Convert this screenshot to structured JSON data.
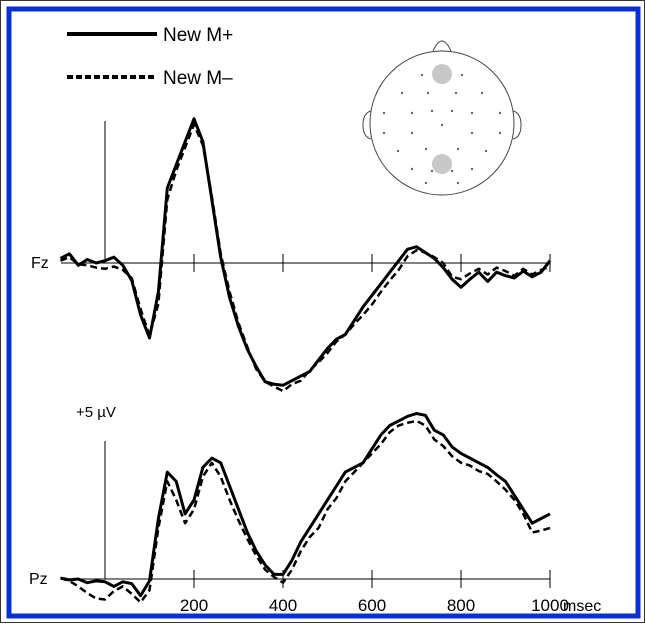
{
  "chart_data": {
    "type": "line",
    "colors": {
      "frame_border": "#0a2fd6",
      "trace": "#000000",
      "electrode": "#c8c8c8"
    },
    "legend": {
      "position": "top-left",
      "entries": [
        {
          "label": "New M+",
          "style": "solid"
        },
        {
          "label": "New M–",
          "style": "dashed"
        }
      ]
    },
    "x_axis": {
      "ticks": [
        200,
        400,
        600,
        800,
        1000
      ],
      "unit": "msec",
      "range": [
        -100,
        1000
      ]
    },
    "y_scale": {
      "label": "+5 µV",
      "value_uV": 5
    },
    "series_names": [
      "New M+",
      "New M–"
    ],
    "channels": [
      {
        "label": "Fz",
        "y_range": [
          -11,
          13
        ],
        "x": [
          -100,
          -80,
          -60,
          -40,
          -20,
          0,
          20,
          40,
          60,
          80,
          100,
          120,
          140,
          160,
          180,
          200,
          220,
          240,
          260,
          280,
          300,
          320,
          340,
          360,
          380,
          400,
          420,
          440,
          460,
          480,
          500,
          520,
          540,
          560,
          580,
          600,
          620,
          640,
          660,
          680,
          700,
          720,
          740,
          760,
          780,
          800,
          820,
          840,
          860,
          880,
          900,
          920,
          940,
          960,
          980,
          1000
        ],
        "series": [
          {
            "name": "New M+",
            "values": [
              0.4,
              0.8,
              -0.2,
              0.3,
              0,
              0.2,
              0.5,
              -0.2,
              -1.5,
              -4.5,
              -6.5,
              -2.5,
              6.5,
              8.5,
              10.5,
              12.5,
              10.5,
              5.5,
              0.5,
              -3,
              -5.5,
              -7.5,
              -9,
              -10.3,
              -10.5,
              -10.6,
              -10.2,
              -9.8,
              -9.4,
              -8.4,
              -7.4,
              -6.6,
              -6.2,
              -5,
              -3.8,
              -2.8,
              -1.8,
              -0.8,
              0.2,
              1.2,
              1.4,
              0.9,
              0.4,
              -0.4,
              -1.4,
              -2.1,
              -1.4,
              -0.8,
              -1.6,
              -0.8,
              -1.1,
              -1.3,
              -0.7,
              -1.2,
              -0.8,
              0.2
            ]
          },
          {
            "name": "New M–",
            "values": [
              0.2,
              0.5,
              -0.1,
              -0.2,
              -0.4,
              -0.5,
              -0.3,
              -0.6,
              -1.3,
              -4,
              -6.3,
              -3.5,
              5.5,
              8,
              10,
              12,
              10.2,
              5.8,
              0.8,
              -2.5,
              -5.2,
              -7.3,
              -9.2,
              -10.3,
              -10.7,
              -11.1,
              -10.5,
              -10.2,
              -9.3,
              -8.6,
              -7.8,
              -6.8,
              -6.2,
              -5.3,
              -4.5,
              -3.6,
              -2.5,
              -1.5,
              -0.6,
              0.6,
              1.1,
              0.9,
              0.5,
              0,
              -1.2,
              -1.4,
              -0.9,
              -0.5,
              -1,
              -0.4,
              -0.7,
              -1.1,
              -0.5,
              -1,
              -0.6,
              -0.3
            ]
          }
        ]
      },
      {
        "label": "Pz",
        "y_range": [
          -2.5,
          20
        ],
        "x": [
          -100,
          -80,
          -60,
          -40,
          -20,
          0,
          20,
          40,
          60,
          80,
          100,
          120,
          140,
          160,
          180,
          200,
          220,
          240,
          260,
          280,
          300,
          320,
          340,
          360,
          380,
          400,
          420,
          440,
          460,
          480,
          500,
          520,
          540,
          560,
          580,
          600,
          620,
          640,
          660,
          680,
          700,
          720,
          740,
          760,
          780,
          800,
          820,
          840,
          860,
          880,
          900,
          920,
          940,
          960,
          980,
          1000
        ],
        "series": [
          {
            "name": "New M+",
            "values": [
              0.1,
              -0.1,
              0,
              -0.4,
              -0.2,
              -0.3,
              -0.8,
              -0.3,
              -0.5,
              -1.8,
              -0.2,
              6.5,
              11.5,
              10.5,
              7,
              8.5,
              12,
              13,
              12.5,
              10,
              7.5,
              5,
              3,
              1.5,
              0.5,
              0.5,
              2,
              4,
              5.5,
              7,
              8.5,
              10,
              11.5,
              12,
              12.5,
              14,
              15.5,
              16.5,
              17,
              17.5,
              17.8,
              17.6,
              16,
              15.5,
              14.2,
              13.5,
              13,
              12.5,
              12,
              11.2,
              10.5,
              9,
              7.5,
              6,
              6.5,
              7
            ]
          },
          {
            "name": "New M–",
            "values": [
              0.1,
              -0.2,
              -0.8,
              -1.5,
              -2.1,
              -2.2,
              -1.3,
              -0.8,
              -1.6,
              -2.5,
              -1.2,
              5.5,
              10.5,
              8.5,
              6,
              7.5,
              11,
              12.5,
              11,
              8.5,
              6.3,
              4.3,
              2.5,
              1,
              0.2,
              -0.4,
              1,
              3,
              4.5,
              5.5,
              7.5,
              8.7,
              10.5,
              11.5,
              12.5,
              13.5,
              14.5,
              15.8,
              16.5,
              16.8,
              17,
              16.5,
              15,
              14.3,
              13.2,
              12.5,
              12.2,
              11.6,
              11.3,
              10.5,
              9.6,
              8.5,
              7,
              5,
              5.2,
              5.5
            ]
          }
        ]
      }
    ]
  },
  "scalp_map": {
    "highlighted_electrodes": [
      "Fz",
      "Pz"
    ]
  }
}
